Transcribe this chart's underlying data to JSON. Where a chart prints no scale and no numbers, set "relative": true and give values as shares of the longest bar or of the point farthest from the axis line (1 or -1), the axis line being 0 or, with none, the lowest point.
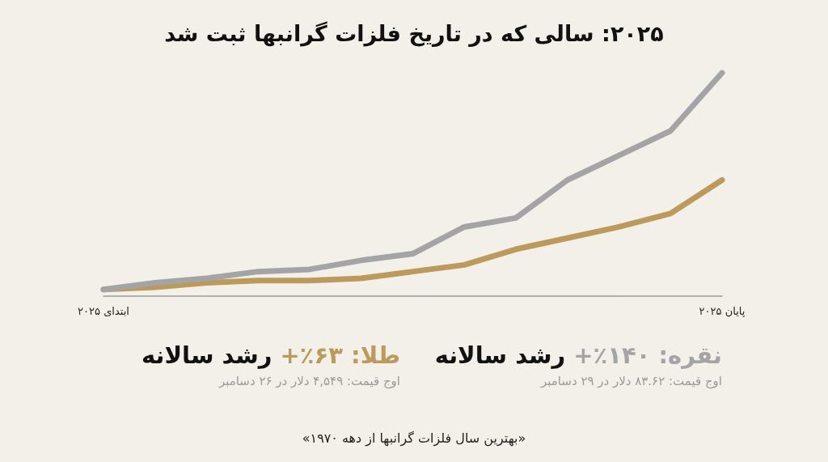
{
  "chart_data": {
    "type": "line",
    "title": "۲۰۲۵: سالی که در تاریخ فلزات گرانبها ثبت شد",
    "relative": true,
    "categories": [
      "ابتدای ۲۰۲۵",
      null,
      null,
      null,
      null,
      null,
      null,
      null,
      null,
      null,
      null,
      null,
      "پایان ۲۰۲۵"
    ],
    "series": [
      {
        "color": "#a4a4a6",
        "values": [
          0.03,
          0.06,
          0.08,
          0.11,
          0.12,
          0.16,
          0.19,
          0.31,
          0.35,
          0.52,
          0.63,
          0.74,
          1
        ]
      },
      {
        "color": "#bb9a5c",
        "values": [
          0.03,
          0.04,
          0.06,
          0.07,
          0.07,
          0.08,
          0.11,
          0.14,
          0.21,
          0.26,
          0.31,
          0.37,
          0.52
        ]
      }
    ],
    "annotations": [
      "نقره: ۱۴۰٪+",
      "رشد سالانه",
      "اوج قیمت: ۸۳.۶۲ دلار در ۲۹ دسامبر",
      "طلا: ۶۳٪+",
      "رشد سالانه",
      "اوج قیمت: ۴,۵۴۹ دلار در ۲۶ دسامبر",
      "«بهترین سال فلزات گرانبها از دهه ۱۹۷۰»"
    ],
    "marker": "none",
    "line_style": "solid",
    "grid": false
  }
}
